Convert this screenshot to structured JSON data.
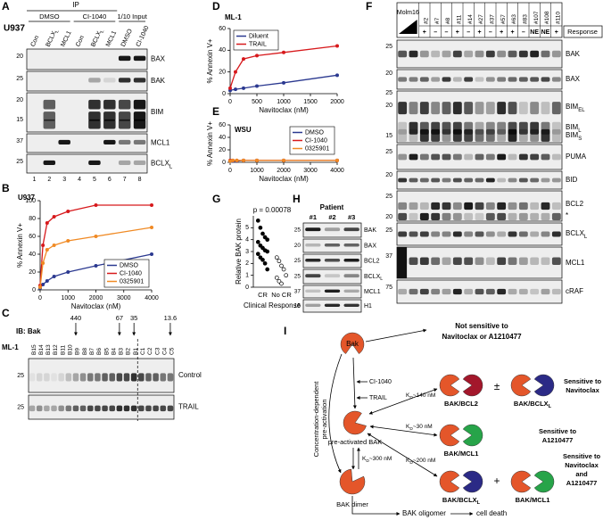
{
  "panels": {
    "A": {
      "letter": "A",
      "cell": "U937",
      "ip": "IP",
      "groups": [
        "DMSO",
        "CI-1040",
        "1/10 Input"
      ],
      "lanes": [
        "Con",
        [
          "BCLX",
          "L"
        ],
        "MCL1",
        "Con",
        [
          "BCLX",
          "L"
        ],
        "MCL1",
        "DMSO",
        "CI-1040"
      ],
      "lane_numbers": [
        "1",
        "2",
        "3",
        "4",
        "5",
        "6",
        "7",
        "8"
      ],
      "rows": [
        {
          "label": "BAX",
          "mw": [
            "20"
          ]
        },
        {
          "label": "BAK",
          "mw": [
            "25"
          ]
        },
        {
          "label": "BIM",
          "mw": [
            "20",
            "15"
          ]
        },
        {
          "label": "MCL1",
          "mw": [
            "37"
          ]
        },
        {
          "label": [
            "BCLX",
            "L"
          ],
          "mw": [
            "25"
          ]
        }
      ]
    },
    "C": {
      "letter": "C",
      "ib": "IB: Bak",
      "cell": "ML-1",
      "marks": [
        "440",
        "67",
        "35",
        "13.6"
      ],
      "lanes": [
        "B15",
        "B14",
        "B13",
        "B12",
        "B11",
        "B10",
        "B9",
        "B8",
        "B7",
        "B6",
        "B5",
        "B4",
        "B3",
        "B2",
        "B1",
        "C1",
        "C2",
        "C3",
        "C4",
        "C5"
      ],
      "rows": [
        {
          "label": "Control",
          "mw": [
            "25"
          ]
        },
        {
          "label": "TRAIL",
          "mw": [
            "25"
          ]
        }
      ]
    },
    "F": {
      "letter": "F",
      "sample": "Molm16",
      "lanes": [
        "#2",
        "#7",
        "#8",
        "#11",
        "#14",
        "#27",
        "#37",
        "#57",
        "#63",
        "#83",
        "#107",
        "#108",
        "#110"
      ],
      "responses": [
        "+",
        "–",
        "–",
        "+",
        "–",
        "+",
        "–",
        "+",
        "+",
        "–",
        "NE",
        "NE",
        "+"
      ],
      "response_title": "Response",
      "row_labels": [
        "BAK",
        "BAX",
        [
          "BIM",
          "EL"
        ],
        [
          "BIM",
          "L"
        ],
        [
          "BIM",
          "S"
        ],
        "PUMA",
        "BID",
        "BCL2",
        "*",
        [
          "BCLX",
          "L"
        ],
        "MCL1",
        "cRAF"
      ],
      "mw": [
        "25",
        "20",
        "25",
        "20",
        "15",
        "25",
        "20",
        "25",
        "20",
        "25",
        "37",
        "75"
      ]
    },
    "H": {
      "letter": "H",
      "title": "Patient",
      "lanes": [
        "#1",
        "#2",
        "#3"
      ],
      "row_labels": [
        "BAK",
        "BAX",
        "BCL2",
        [
          "BCLX",
          "L"
        ],
        "MCL1",
        "H1"
      ],
      "mw": [
        "25",
        "20",
        "25",
        "25",
        "37",
        "15"
      ]
    },
    "I": {
      "letter": "I",
      "bak": "Bak",
      "not_sensitive": [
        "Not sensitive to",
        "Navitoclax or A1210477"
      ],
      "ci": "CI-1040",
      "trail": "TRAIL",
      "preactivated": "pre-activated BAK",
      "dimer": "BAK dimer",
      "vertical": [
        "Concentration-dependent",
        "pre-activation"
      ],
      "complexes": [
        "BAK/BCL2",
        [
          "BAK/BCLX",
          "L"
        ],
        "BAK/MCL1",
        [
          "BAK/BCLX",
          "L"
        ],
        "BAK/MCL1"
      ],
      "pm": "±",
      "plus": "+",
      "kd": [
        [
          "K",
          "D",
          "~140 nM"
        ],
        [
          "K",
          "D",
          "~30 nM"
        ],
        [
          "K",
          "D",
          "~200 nM"
        ],
        [
          "K",
          "D",
          "~300 nM"
        ]
      ],
      "sensitive": [
        [
          "Sensitive to",
          "Navitoclax"
        ],
        [
          "Sensitive to",
          "A1210477"
        ],
        [
          "Sensitive to",
          "Navitoclax",
          "and",
          "A1210477"
        ]
      ],
      "oligomer": "BAK oligomer",
      "death": "cell death"
    }
  },
  "chart_data": [
    {
      "letter": "B",
      "type": "line",
      "title": "U937",
      "xlabel": "Navitoclax (nM)",
      "ylabel": "% Annexin V+",
      "x": [
        0,
        100,
        250,
        500,
        1000,
        2000,
        4000
      ],
      "xlim": [
        0,
        4000
      ],
      "xticks": [
        0,
        1000,
        2000,
        3000,
        4000
      ],
      "ylim": [
        0,
        100
      ],
      "yticks": [
        0,
        20,
        40,
        60,
        80,
        100
      ],
      "legend": "lower right",
      "series": [
        {
          "name": "DMSO",
          "color": "#2b3990",
          "values": [
            2,
            6,
            10,
            15,
            20,
            27,
            40
          ]
        },
        {
          "name": "CI-1040",
          "color": "#d7191c",
          "values": [
            5,
            50,
            75,
            82,
            88,
            95,
            95
          ]
        },
        {
          "name": "0325901",
          "color": "#f08a24",
          "values": [
            3,
            30,
            45,
            50,
            55,
            60,
            70
          ]
        }
      ]
    },
    {
      "letter": "D",
      "type": "line",
      "title": "ML-1",
      "xlabel": "Navitoclax (nM)",
      "ylabel": "% Annexin V+",
      "x": [
        0,
        100,
        250,
        500,
        1000,
        2000
      ],
      "xlim": [
        0,
        2000
      ],
      "xticks": [
        0,
        500,
        1000,
        1500,
        2000
      ],
      "ylim": [
        0,
        60
      ],
      "yticks": [
        0,
        20,
        40,
        60
      ],
      "legend": "upper left",
      "series": [
        {
          "name": "Diluent",
          "color": "#2b3990",
          "values": [
            3,
            4,
            5,
            7,
            10,
            17
          ]
        },
        {
          "name": "TRAIL",
          "color": "#d7191c",
          "values": [
            5,
            20,
            32,
            35,
            38,
            44
          ]
        }
      ]
    },
    {
      "letter": "E",
      "type": "line",
      "title": "WSU",
      "xlabel": "Navitoclax (nM)",
      "ylabel": "% Annexin V+",
      "x": [
        0,
        100,
        250,
        500,
        1000,
        2000,
        4000
      ],
      "xlim": [
        0,
        4000
      ],
      "xticks": [
        0,
        1000,
        2000,
        3000,
        4000
      ],
      "ylim": [
        0,
        60
      ],
      "yticks": [
        0,
        20,
        40,
        60
      ],
      "legend": "upper right",
      "series": [
        {
          "name": "DMSO",
          "color": "#2b3990",
          "values": [
            2,
            2,
            2,
            3,
            3,
            3,
            3
          ]
        },
        {
          "name": "CI-1040",
          "color": "#d7191c",
          "values": [
            3,
            3,
            3,
            3,
            3,
            3,
            3
          ]
        },
        {
          "name": "0325901",
          "color": "#f08a24",
          "values": [
            2,
            3,
            3,
            3,
            3,
            3,
            3
          ]
        }
      ]
    },
    {
      "letter": "G",
      "type": "strip",
      "annotation": "p = 0.00078",
      "ylabel": "Relative BAK protein",
      "xlabel": "Clinical Response",
      "categories": [
        "CR",
        "No CR"
      ],
      "open": [
        false,
        true
      ],
      "ylim": [
        0,
        6
      ],
      "yticks": [
        0,
        1,
        2,
        3,
        4,
        5
      ],
      "values": [
        [
          5.6,
          5.0,
          4.5,
          4.2,
          4.0,
          3.8,
          3.5,
          3.3,
          3.1,
          3.0,
          2.8,
          2.5,
          2.3,
          2.0,
          1.5
        ],
        [
          2.5,
          2.2,
          1.8,
          1.5,
          1.0,
          0.8,
          0.5,
          0.3
        ]
      ]
    }
  ]
}
